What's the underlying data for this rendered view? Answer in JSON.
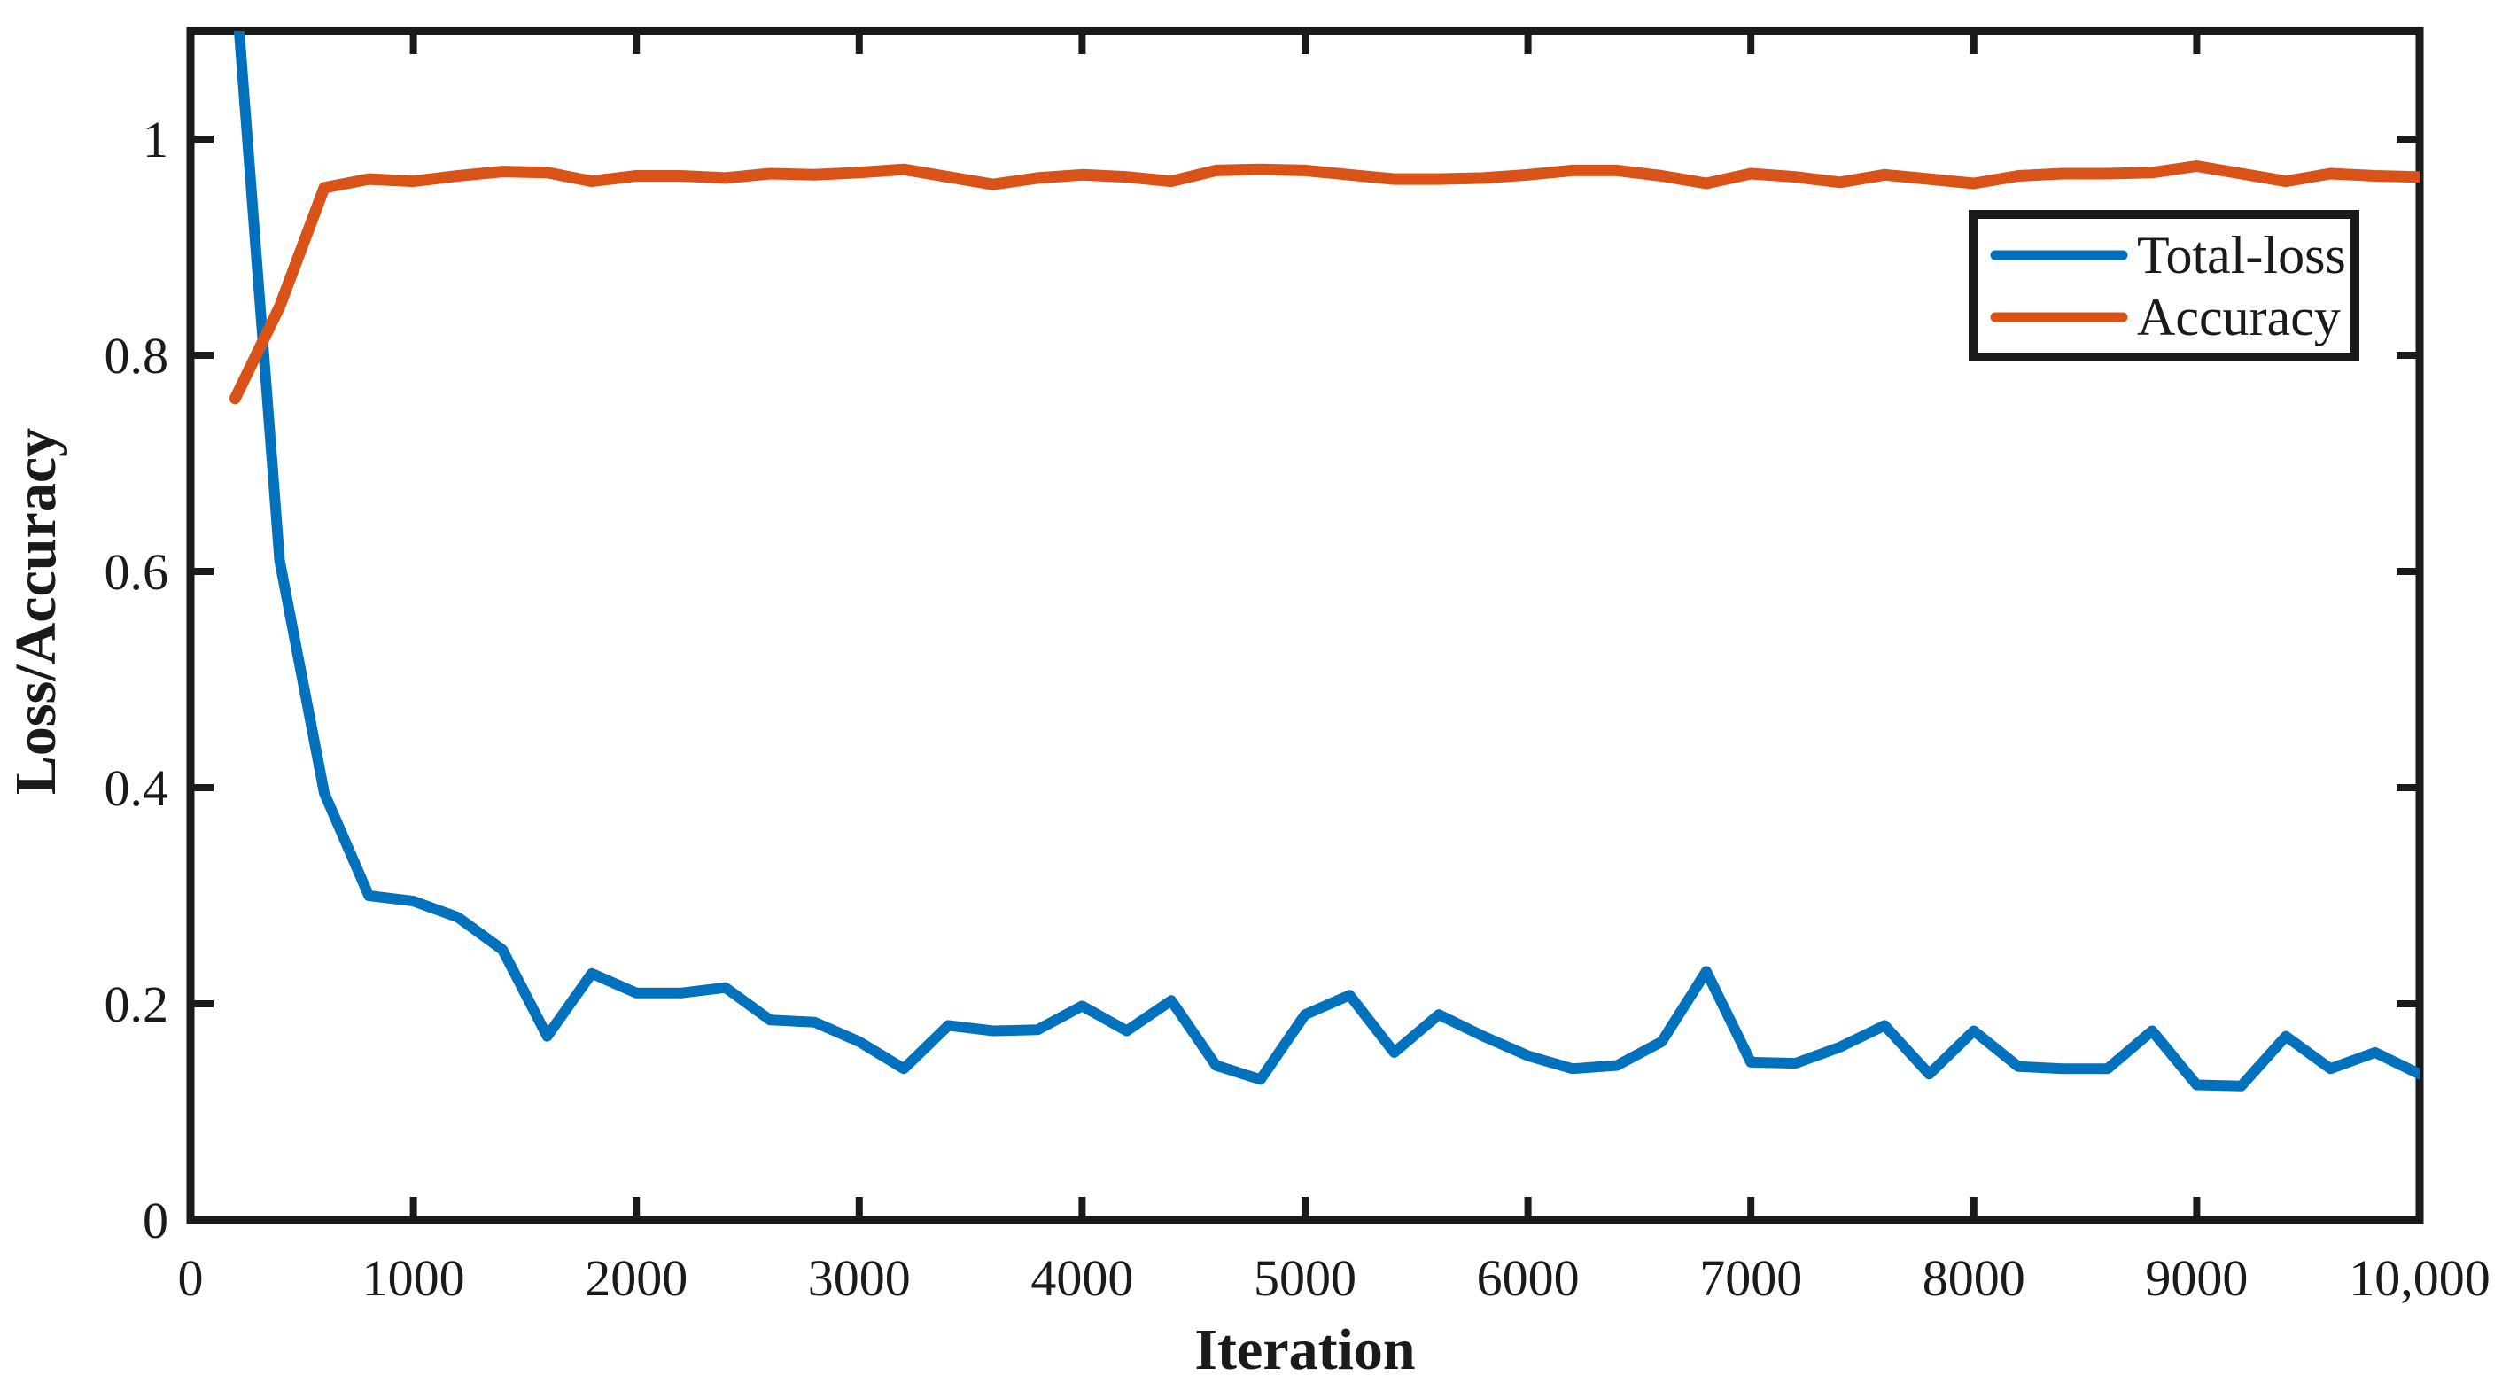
{
  "chart_data": {
    "type": "line",
    "title": "",
    "xlabel": "Iteration",
    "ylabel": "Loss/Accuracy",
    "xlim": [
      0,
      10000
    ],
    "ylim": [
      0,
      1.1
    ],
    "grid": false,
    "legend_position": "upper-right-inside",
    "frame_color": "#1a1a1a",
    "x_ticks": [
      0,
      1000,
      2000,
      3000,
      4000,
      5000,
      6000,
      7000,
      8000,
      9000,
      10000
    ],
    "x_tick_labels": [
      "0",
      "1000",
      "2000",
      "3000",
      "4000",
      "5000",
      "6000",
      "7000",
      "8000",
      "9000",
      "10,000"
    ],
    "y_ticks": [
      0,
      0.2,
      0.4,
      0.6,
      0.8,
      1
    ],
    "y_tick_labels": [
      "0",
      "0.2",
      "0.4",
      "0.6",
      "0.8",
      "1"
    ],
    "x": [
      200,
      400,
      600,
      800,
      1000,
      1200,
      1400,
      1600,
      1800,
      2000,
      2200,
      2400,
      2600,
      2800,
      3000,
      3200,
      3400,
      3600,
      3800,
      4000,
      4200,
      4400,
      4600,
      4800,
      5000,
      5200,
      5400,
      5600,
      5800,
      6000,
      6200,
      6400,
      6600,
      6800,
      7000,
      7200,
      7400,
      7600,
      7800,
      8000,
      8200,
      8400,
      8600,
      8800,
      9000,
      9200,
      9400,
      9600,
      9800,
      10000
    ],
    "series": [
      {
        "name": "Total-loss",
        "color": "#0072BD",
        "stroke_width": 12,
        "values": [
          1.15,
          0.61,
          0.395,
          0.3,
          0.295,
          0.28,
          0.25,
          0.17,
          0.228,
          0.21,
          0.21,
          0.215,
          0.185,
          0.183,
          0.165,
          0.14,
          0.18,
          0.175,
          0.176,
          0.198,
          0.175,
          0.203,
          0.143,
          0.13,
          0.19,
          0.208,
          0.155,
          0.19,
          0.17,
          0.152,
          0.14,
          0.143,
          0.165,
          0.23,
          0.146,
          0.145,
          0.16,
          0.18,
          0.135,
          0.175,
          0.142,
          0.14,
          0.14,
          0.175,
          0.125,
          0.124,
          0.17,
          0.14,
          0.155,
          0.135
        ]
      },
      {
        "name": "Accuracy",
        "color": "#D95319",
        "stroke_width": 13,
        "values": [
          0.76,
          0.845,
          0.955,
          0.963,
          0.961,
          0.966,
          0.97,
          0.969,
          0.961,
          0.966,
          0.966,
          0.964,
          0.968,
          0.967,
          0.969,
          0.972,
          0.965,
          0.958,
          0.964,
          0.967,
          0.965,
          0.961,
          0.971,
          0.972,
          0.971,
          0.967,
          0.963,
          0.963,
          0.964,
          0.967,
          0.971,
          0.971,
          0.966,
          0.959,
          0.968,
          0.965,
          0.96,
          0.967,
          0.963,
          0.959,
          0.966,
          0.968,
          0.968,
          0.969,
          0.975,
          0.968,
          0.961,
          0.968,
          0.966,
          0.965
        ]
      }
    ]
  }
}
